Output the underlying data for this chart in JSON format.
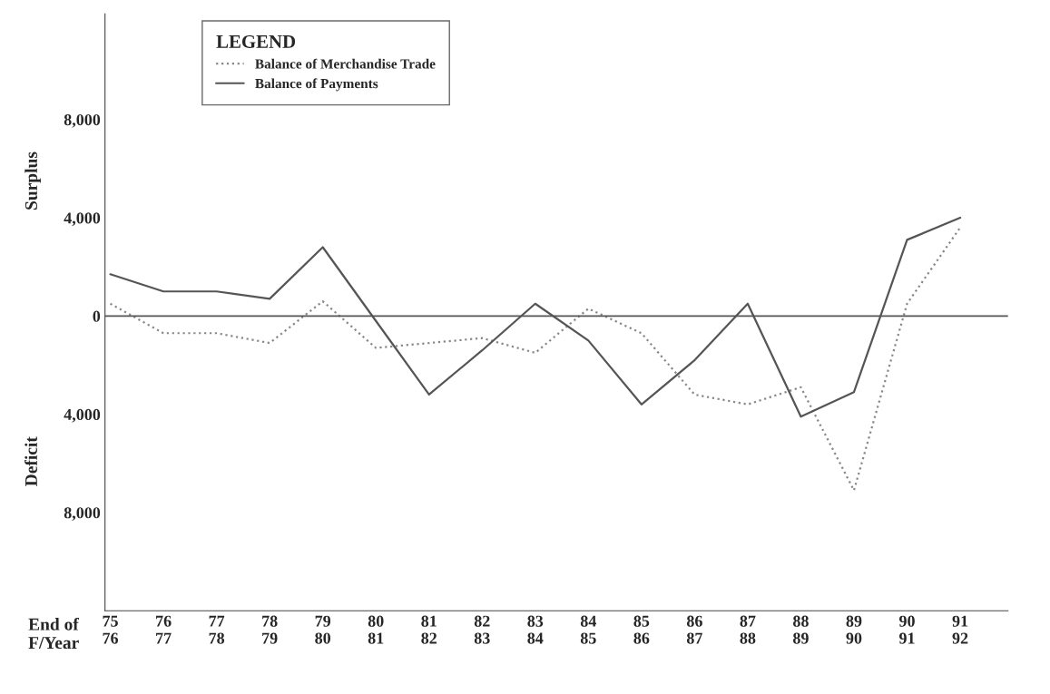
{
  "chart_data": {
    "type": "line",
    "xlabel": "End of\nF/Year",
    "ylabel": "Surplus",
    "annotations": [
      "Deficit"
    ],
    "legend_title": "LEGEND",
    "legend": "top left",
    "grid": false,
    "marker": "none",
    "categories": [
      "75\n76",
      "76\n77",
      "77\n78",
      "78\n79",
      "79\n80",
      "80\n81",
      "81\n82",
      "82\n83",
      "83\n84",
      "84\n85",
      "85\n86",
      "86\n87",
      "87\n88",
      "88\n89",
      "89\n90",
      "90\n91",
      "91\n92"
    ],
    "ylim": [
      -12000,
      12300
    ],
    "yticks": [
      {
        "value": 8000,
        "label": "8,000"
      },
      {
        "value": 4000,
        "label": "4,000"
      },
      0,
      {
        "value": -4000,
        "label": "4,000"
      },
      {
        "value": -8000,
        "label": "8,000"
      }
    ],
    "ref_lines": [
      {
        "axis": "y",
        "value": 0,
        "color": "#555555",
        "line_style": "solid"
      }
    ],
    "series": [
      {
        "name": "Balance of Merchandise Trade",
        "color": "#888888",
        "line_style": "dotted",
        "values": [
          500,
          -700,
          -700,
          -1100,
          600,
          -1300,
          -1100,
          -900,
          -1500,
          300,
          -700,
          -3200,
          -3600,
          -2900,
          -7100,
          500,
          3600
        ]
      },
      {
        "name": "Balance of Payments",
        "color": "#555555",
        "line_style": "solid",
        "values": [
          1700,
          1000,
          1000,
          700,
          2800,
          -200,
          -3200,
          -1400,
          500,
          -1000,
          -3600,
          -1800,
          500,
          -4100,
          -3100,
          3100,
          4000
        ]
      }
    ]
  }
}
